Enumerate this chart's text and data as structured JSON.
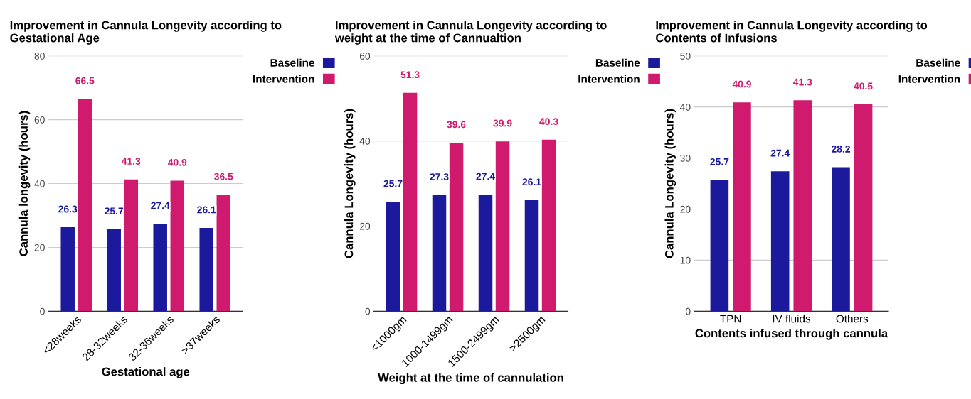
{
  "chart_data": [
    {
      "type": "bar",
      "title": "Improvement in Cannula Longevity according to\nGestational Age",
      "xlabel": "Gestational age",
      "ylabel": "Cannula longevity (hours)",
      "categories": [
        "<28weeks",
        "28-32weeks",
        "32-36weeks",
        ">37weeks"
      ],
      "series": [
        {
          "name": "Baseline",
          "color": "#1c1a9c",
          "values": [
            26.3,
            25.7,
            27.4,
            26.1
          ]
        },
        {
          "name": "Intervention",
          "color": "#cf1a6e",
          "values": [
            66.5,
            41.3,
            40.9,
            36.5
          ]
        }
      ],
      "ylim": [
        0,
        80
      ],
      "yticks": [
        0,
        20,
        40,
        60,
        80
      ],
      "grid": "y",
      "legend": "top right",
      "data_labels": true
    },
    {
      "type": "bar",
      "title": "Improvement in Cannula Longevity according to\nweight at the time of Cannualtion",
      "xlabel": "Weight at the time of cannulation",
      "ylabel": "Cannula Longevity (hours)",
      "categories": [
        "<1000gm",
        "1000-1499gm",
        "1500-2499gm",
        ">2500gm"
      ],
      "series": [
        {
          "name": "Baseline",
          "color": "#1c1a9c",
          "values": [
            25.7,
            27.3,
            27.4,
            26.1
          ]
        },
        {
          "name": "Intervention",
          "color": "#cf1a6e",
          "values": [
            51.3,
            39.6,
            39.9,
            40.3
          ]
        }
      ],
      "ylim": [
        0,
        60
      ],
      "yticks": [
        0,
        20,
        40,
        60
      ],
      "grid": "y",
      "legend": "top right",
      "data_labels": true
    },
    {
      "type": "bar",
      "title": "Improvement in Cannula Longevity according to\nContents of Infusions",
      "xlabel": "Contents infused through cannula",
      "ylabel": "Cannula Longevity (hours)",
      "categories": [
        "TPN",
        "IV fluids",
        "Others"
      ],
      "series": [
        {
          "name": "Baseline",
          "color": "#1c1a9c",
          "values": [
            25.7,
            27.4,
            28.2
          ]
        },
        {
          "name": "Intervention",
          "color": "#cf1a6e",
          "values": [
            40.9,
            41.3,
            40.5
          ]
        }
      ],
      "ylim": [
        0,
        50
      ],
      "yticks": [
        0,
        10,
        20,
        30,
        40,
        50
      ],
      "grid": "y",
      "legend": "top right",
      "data_labels": true
    }
  ]
}
